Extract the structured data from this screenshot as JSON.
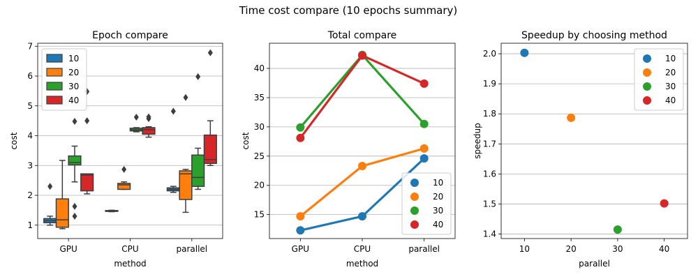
{
  "figure": {
    "title": "Time cost compare (10 epochs summary)"
  },
  "colors": {
    "10": "#1f77b4",
    "20": "#ff7f0e",
    "30": "#2ca02c",
    "40": "#d62728"
  },
  "chart_data": [
    {
      "type": "box",
      "title": "Epoch compare",
      "xlabel": "method",
      "ylabel": "cost",
      "categories": [
        "GPU",
        "CPU",
        "parallel"
      ],
      "ylim": [
        0.55,
        7.1
      ],
      "yticks": [
        1,
        2,
        3,
        4,
        5,
        6,
        7
      ],
      "grid": "y",
      "legend": {
        "placement": "top-left",
        "entries": [
          "10",
          "20",
          "30",
          "40"
        ]
      },
      "series": [
        {
          "name": "10",
          "boxes": [
            {
              "whislo": 1.0,
              "q1": 1.08,
              "med": 1.15,
              "q3": 1.22,
              "whishi": 1.3,
              "fliers": [
                2.3
              ]
            },
            {
              "whislo": 1.45,
              "q1": 1.46,
              "med": 1.47,
              "q3": 1.49,
              "whishi": 1.5,
              "fliers": []
            },
            {
              "whislo": 2.1,
              "q1": 2.15,
              "med": 2.2,
              "q3": 2.25,
              "whishi": 2.3,
              "fliers": [
                4.82
              ]
            }
          ]
        },
        {
          "name": "20",
          "boxes": [
            {
              "whislo": 0.88,
              "q1": 0.93,
              "med": 1.18,
              "q3": 1.88,
              "whishi": 3.17,
              "fliers": []
            },
            {
              "whislo": 2.2,
              "q1": 2.2,
              "med": 2.35,
              "q3": 2.4,
              "whishi": 2.45,
              "fliers": [
                2.87
              ]
            },
            {
              "whislo": 1.43,
              "q1": 1.86,
              "med": 2.72,
              "q3": 2.82,
              "whishi": 2.87,
              "fliers": [
                5.28
              ]
            }
          ]
        },
        {
          "name": "30",
          "boxes": [
            {
              "whislo": 2.45,
              "q1": 3.02,
              "med": 3.1,
              "q3": 3.32,
              "whishi": 3.65,
              "fliers": [
                4.48,
                1.63,
                1.3
              ]
            },
            {
              "whislo": 4.13,
              "q1": 4.16,
              "med": 4.2,
              "q3": 4.25,
              "whishi": 4.27,
              "fliers": [
                4.62
              ]
            },
            {
              "whislo": 2.2,
              "q1": 2.3,
              "med": 2.6,
              "q3": 3.35,
              "whishi": 3.58,
              "fliers": [
                5.98
              ]
            }
          ]
        },
        {
          "name": "40",
          "boxes": [
            {
              "whislo": 2.05,
              "q1": 2.15,
              "med": 2.68,
              "q3": 2.72,
              "whishi": 2.72,
              "fliers": [
                4.5,
                5.48
              ]
            },
            {
              "whislo": 3.95,
              "q1": 4.05,
              "med": 4.2,
              "q3": 4.27,
              "whishi": 4.3,
              "fliers": [
                4.57,
                4.63
              ]
            },
            {
              "whislo": 3.0,
              "q1": 3.07,
              "med": 3.2,
              "q3": 4.02,
              "whishi": 4.5,
              "fliers": [
                6.78
              ]
            }
          ]
        }
      ]
    },
    {
      "type": "line",
      "title": "Total compare",
      "xlabel": "method",
      "ylabel": "cost",
      "categories": [
        "GPU",
        "CPU",
        "parallel"
      ],
      "ylim": [
        10.9,
        44.3
      ],
      "yticks": [
        15,
        20,
        25,
        30,
        35,
        40
      ],
      "grid": "y",
      "legend": {
        "placement": "bottom-right",
        "entries": [
          "10",
          "20",
          "30",
          "40"
        ]
      },
      "series": [
        {
          "name": "10",
          "values": [
            12.3,
            14.7,
            24.6
          ]
        },
        {
          "name": "20",
          "values": [
            14.7,
            23.3,
            26.3
          ]
        },
        {
          "name": "30",
          "values": [
            29.9,
            42.3,
            30.5
          ]
        },
        {
          "name": "40",
          "values": [
            28.1,
            42.2,
            37.4
          ]
        }
      ]
    },
    {
      "type": "scatter",
      "title": "Speedup by choosing method",
      "xlabel": "parallel",
      "ylabel": "speedup",
      "categories": [
        "10",
        "20",
        "30",
        "40"
      ],
      "ylim": [
        1.385,
        2.035
      ],
      "yticks": [
        1.4,
        1.5,
        1.6,
        1.7,
        1.8,
        1.9,
        2.0
      ],
      "ytick_labels": [
        "1.4",
        "1.5",
        "1.6",
        "1.7",
        "1.8",
        "1.9",
        "2.0"
      ],
      "grid": "y",
      "legend": {
        "placement": "top-right",
        "entries": [
          "10",
          "20",
          "30",
          "40"
        ]
      },
      "series": [
        {
          "name": "10",
          "x": "10",
          "y": 2.003
        },
        {
          "name": "20",
          "x": "20",
          "y": 1.787
        },
        {
          "name": "30",
          "x": "30",
          "y": 1.415
        },
        {
          "name": "40",
          "x": "40",
          "y": 1.502
        }
      ]
    }
  ]
}
